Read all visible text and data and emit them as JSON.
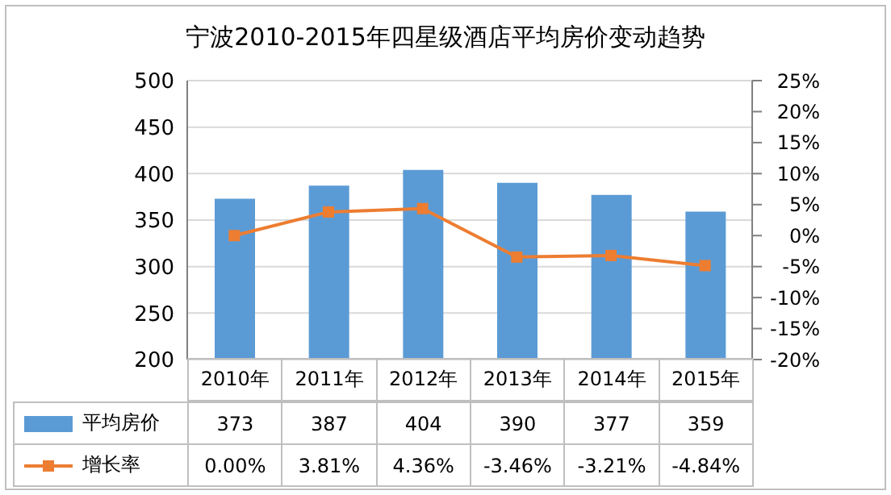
{
  "chart_data": {
    "type": "bar",
    "title": "宁波2010-2015年四星级酒店平均房价变动趋势",
    "categories": [
      "2010年",
      "2011年",
      "2012年",
      "2013年",
      "2014年",
      "2015年"
    ],
    "series": [
      {
        "name": "平均房价",
        "color": "#5b9bd5",
        "values": [
          373,
          387,
          404,
          390,
          377,
          359
        ],
        "value_labels": [
          "373",
          "387",
          "404",
          "390",
          "377",
          "359"
        ]
      },
      {
        "name": "增长率",
        "type": "line",
        "axis": "y2",
        "color": "#ed7d31",
        "values": [
          0,
          3.81,
          4.36,
          -3.46,
          -3.21,
          -4.84
        ],
        "value_labels": [
          "0.00%",
          "3.81%",
          "4.36%",
          "-3.46%",
          "-3.21%",
          "-4.84%"
        ]
      }
    ],
    "ylim": [
      200,
      500
    ],
    "yticks": [
      200,
      250,
      300,
      350,
      400,
      450,
      500
    ],
    "y2lim": [
      -20,
      25
    ],
    "y2ticks": [
      {
        "value": -20,
        "label": "-20%"
      },
      {
        "value": -15,
        "label": "-15%"
      },
      {
        "value": -10,
        "label": "-10%"
      },
      {
        "value": -5,
        "label": "-5%"
      },
      {
        "value": 0,
        "label": "0%"
      },
      {
        "value": 5,
        "label": "5%"
      },
      {
        "value": 10,
        "label": "10%"
      },
      {
        "value": 15,
        "label": "15%"
      },
      {
        "value": 20,
        "label": "20%"
      },
      {
        "value": 25,
        "label": "25%"
      }
    ],
    "grid": "y",
    "legend": "bottom",
    "marker": "square",
    "line_style": "solid"
  }
}
